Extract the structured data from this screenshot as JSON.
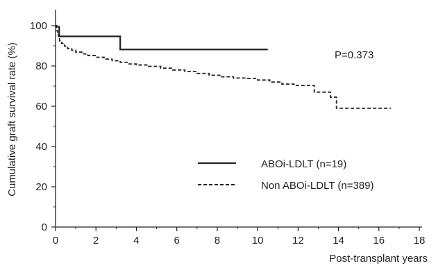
{
  "chart_data": {
    "type": "line",
    "title": "",
    "xlabel": "Post-transplant years",
    "ylabel": "Cumulative graft survival rate (%)",
    "xlim": [
      0,
      19
    ],
    "ylim": [
      0,
      108
    ],
    "xticks": [
      0,
      2,
      4,
      6,
      8,
      10,
      12,
      14,
      16,
      18
    ],
    "yticks": [
      0,
      20,
      40,
      60,
      80,
      100
    ],
    "grid": false,
    "legend_position": "lower-right",
    "annotation": "P=0.373",
    "series": [
      {
        "name": "ABOi-LDLT (n=19)",
        "style": "solid",
        "color": "#231f20",
        "x": [
          0,
          0.05,
          0.05,
          0.18,
          0.18,
          3.2,
          3.2,
          10.5
        ],
        "y": [
          100,
          100,
          99.5,
          99.5,
          94.7,
          94.7,
          88.2,
          88.2
        ]
      },
      {
        "name": "Non ABOi-LDLT (n=389)",
        "style": "dashed",
        "color": "#231f20",
        "x": [
          0,
          0.05,
          0.1,
          0.15,
          0.2,
          0.3,
          0.45,
          0.6,
          0.8,
          1.0,
          1.3,
          1.6,
          2.0,
          2.4,
          2.8,
          3.2,
          3.6,
          4.0,
          4.6,
          5.2,
          5.8,
          6.4,
          7.0,
          7.6,
          8.2,
          8.8,
          9.4,
          10.0,
          10.6,
          11.2,
          11.8,
          12.4,
          12.8,
          13.2,
          13.6,
          13.9,
          14.4,
          15.0,
          15.6,
          16.6
        ],
        "y": [
          100,
          97.5,
          95.5,
          93.8,
          92.5,
          91.2,
          89.8,
          88.6,
          87.8,
          86.9,
          86.0,
          85.2,
          84.3,
          83.4,
          82.6,
          81.8,
          81.0,
          80.5,
          79.8,
          78.9,
          78.0,
          77.2,
          76.3,
          75.4,
          74.6,
          74.0,
          73.8,
          73.0,
          72.0,
          71.0,
          70.3,
          70.3,
          67.0,
          67.0,
          64.5,
          59.0,
          59.0,
          59.0,
          59.0,
          59.0
        ]
      }
    ]
  }
}
